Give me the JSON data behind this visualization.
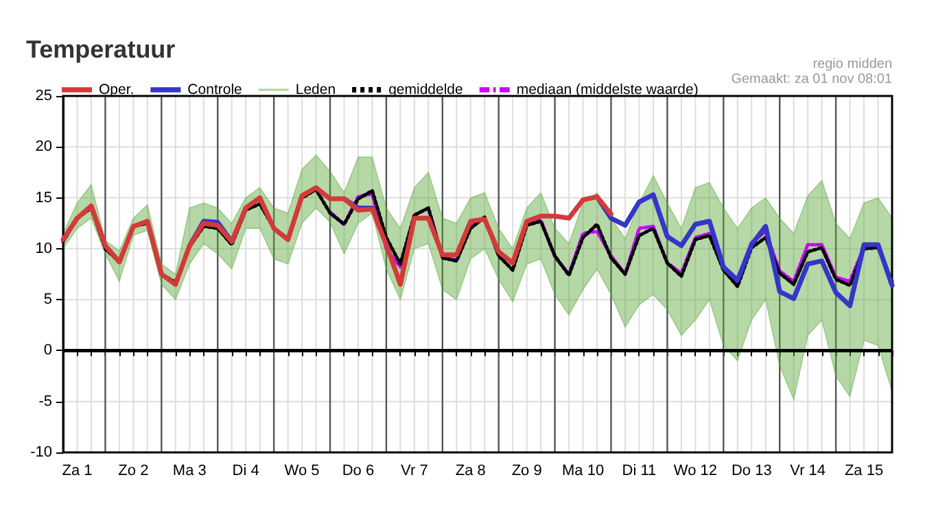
{
  "chart_data": {
    "type": "line",
    "title": "Temperatuur",
    "annotations": [
      "regio midden",
      "Gemaakt: za 01 nov 08:01"
    ],
    "categories": [
      null,
      "Za 1",
      null,
      null,
      null,
      "Zo 2",
      null,
      null,
      null,
      "Ma 3",
      null,
      null,
      null,
      "Di 4",
      null,
      null,
      null,
      "Wo 5",
      null,
      null,
      null,
      "Do 6",
      null,
      null,
      null,
      "Vr 7",
      null,
      null,
      null,
      "Za 8",
      null,
      null,
      null,
      "Zo 9",
      null,
      null,
      null,
      "Ma 10",
      null,
      null,
      null,
      "Di 11",
      null,
      null,
      null,
      "Wo 12",
      null,
      null,
      null,
      "Do 13",
      null,
      null,
      null,
      "Vr 14",
      null,
      null,
      null,
      "Za 15",
      null,
      null
    ],
    "ylim": [
      -10,
      25
    ],
    "yticks": [
      -10,
      -5,
      0,
      5,
      10,
      15,
      20,
      25
    ],
    "grid": true,
    "legend": "top",
    "marker": "none",
    "ref_lines": [
      {
        "axis": "y",
        "value": 0,
        "color": "#000000"
      }
    ],
    "series": [
      {
        "name": "Oper.",
        "color": "#d33a3a",
        "line_style": "solid",
        "values": [
          10.9,
          13.0,
          14.2,
          10.3,
          8.7,
          12.2,
          12.7,
          7.5,
          6.5,
          10.3,
          12.5,
          12.3,
          10.7,
          14.0,
          15.0,
          12.0,
          10.9,
          15.2,
          16.0,
          14.9,
          14.9,
          13.8,
          13.9,
          10.4,
          6.5,
          13.0,
          13.0,
          9.4,
          9.4,
          12.7,
          12.9,
          9.7,
          8.6,
          12.7,
          13.2,
          13.2,
          13.0,
          14.8,
          15.1,
          13.4,
          null,
          null,
          null,
          null,
          null,
          null,
          null,
          null,
          null,
          null,
          null,
          null,
          null,
          null,
          null,
          null,
          null,
          null,
          null,
          null
        ]
      },
      {
        "name": "Controle",
        "color": "#3535c8",
        "line_style": "solid",
        "values": [
          null,
          null,
          null,
          null,
          null,
          null,
          null,
          null,
          null,
          10.3,
          12.7,
          12.6,
          10.7,
          null,
          null,
          null,
          null,
          null,
          null,
          null,
          14.9,
          14.0,
          14.0,
          null,
          null,
          null,
          null,
          null,
          null,
          null,
          null,
          null,
          null,
          null,
          null,
          null,
          null,
          null,
          15.1,
          13.0,
          12.3,
          14.6,
          15.3,
          11.2,
          10.3,
          12.4,
          12.7,
          8.2,
          6.9,
          10.4,
          12.2,
          5.8,
          5.1,
          8.5,
          8.8,
          5.7,
          4.4,
          10.4,
          10.4,
          6.4
        ]
      },
      {
        "name": "Leden",
        "color": "#5aa83a",
        "values": [
          null,
          null,
          null,
          null,
          null,
          null,
          null,
          null,
          null,
          null,
          null,
          null,
          null,
          null,
          null,
          null,
          null,
          null,
          null,
          null,
          null,
          null,
          null,
          null,
          null,
          null,
          null,
          null,
          null,
          null,
          null,
          null,
          null,
          null,
          null,
          null,
          null,
          null,
          null,
          null,
          null,
          null,
          null,
          null,
          null,
          null,
          null,
          null,
          null,
          null,
          null,
          null,
          null,
          null,
          null,
          null,
          null,
          null,
          null,
          null
        ],
        "lower": [
          10,
          12,
          13,
          9.5,
          6.8,
          11.3,
          11.8,
          6.5,
          5,
          8.5,
          10.5,
          9.5,
          8,
          12,
          12,
          9,
          8.5,
          12.5,
          14,
          12.6,
          9.5,
          12.5,
          13.5,
          8,
          5,
          10,
          10.5,
          6,
          5,
          9,
          10,
          7,
          4.8,
          8.5,
          9,
          5.5,
          3.5,
          6,
          8,
          5.5,
          2.3,
          4.5,
          5.5,
          4,
          1.5,
          3,
          5,
          0.5,
          -1,
          3,
          5,
          -1.5,
          -4.8,
          1.5,
          3,
          -2.5,
          -4.5,
          1,
          0.5,
          -4
        ],
        "upper": [
          11.5,
          14.5,
          16.3,
          10.8,
          9.8,
          13,
          14.3,
          8.5,
          7.5,
          14,
          14.5,
          14,
          12.5,
          15,
          16,
          14,
          13.5,
          17.8,
          19.2,
          17.6,
          15.5,
          19,
          19,
          14,
          12,
          16,
          17.5,
          13,
          12.5,
          15,
          15.5,
          12,
          10,
          14,
          15.5,
          12,
          10.5,
          14.5,
          15.5,
          13,
          11,
          14.5,
          17.2,
          14.5,
          12,
          16,
          16.5,
          14,
          12,
          14,
          15,
          13,
          11.5,
          15.2,
          16.7,
          12.5,
          11,
          14.5,
          15,
          13
        ]
      },
      {
        "name": "gemiddelde",
        "color": "#000000",
        "line_style": "dotted",
        "values": [
          10.7,
          13.0,
          14.0,
          10.0,
          8.7,
          12.2,
          12.5,
          7.5,
          6.7,
          10.2,
          12.2,
          12.0,
          10.4,
          13.8,
          14.4,
          12.0,
          11.0,
          15.0,
          15.8,
          13.5,
          12.4,
          14.9,
          15.7,
          11.1,
          8.5,
          13.3,
          14.0,
          9.1,
          8.8,
          12.0,
          13.1,
          9.3,
          7.9,
          12.3,
          12.7,
          9.3,
          7.4,
          11.1,
          12.4,
          9.1,
          7.5,
          11.3,
          12.0,
          8.6,
          7.3,
          10.9,
          11.3,
          7.9,
          6.3,
          10.1,
          11.1,
          7.6,
          6.5,
          9.7,
          10.1,
          7.0,
          6.4,
          10.0,
          10.1,
          6.8
        ]
      },
      {
        "name": "mediaan (middelste waarde)",
        "color": "#cc00ff",
        "line_style": "dashed",
        "values": [
          null,
          null,
          null,
          null,
          null,
          null,
          null,
          null,
          null,
          null,
          null,
          null,
          null,
          null,
          null,
          null,
          null,
          null,
          null,
          13.6,
          12.4,
          15.1,
          15.4,
          10.0,
          8.2,
          13.3,
          14.0,
          9.2,
          8.9,
          12.2,
          13.0,
          9.3,
          8.8,
          12.5,
          12.8,
          9.2,
          7.5,
          11.5,
          11.7,
          9.3,
          7.5,
          12.0,
          12.2,
          8.6,
          7.6,
          11.1,
          11.5,
          8.2,
          7.0,
          10.6,
          11.7,
          7.8,
          6.8,
          10.4,
          10.4,
          7.2,
          6.8,
          10.2,
          10.2,
          6.6
        ]
      }
    ]
  }
}
